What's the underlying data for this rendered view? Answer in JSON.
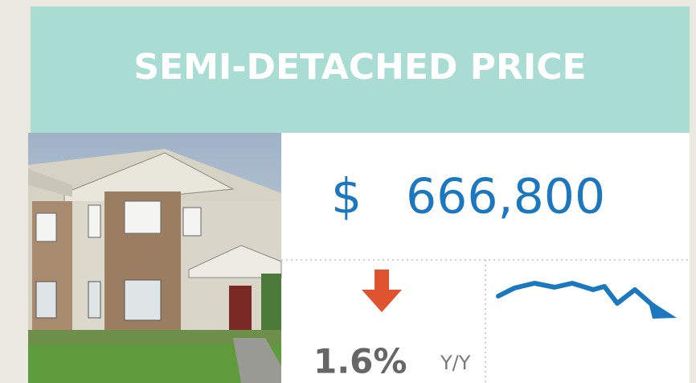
{
  "header": {
    "title": "SEMI-DETACHED PRICE"
  },
  "price": {
    "currency": "$",
    "amount": "666,800"
  },
  "change": {
    "value": "1.6%",
    "period": "Y/Y"
  }
}
